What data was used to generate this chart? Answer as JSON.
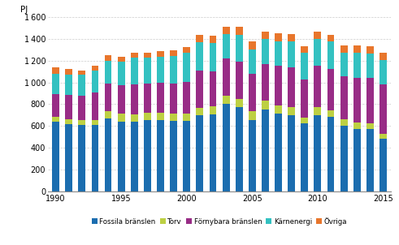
{
  "years": [
    1990,
    1991,
    1992,
    1993,
    1994,
    1995,
    1996,
    1997,
    1998,
    1999,
    2000,
    2001,
    2002,
    2003,
    2004,
    2005,
    2006,
    2007,
    2008,
    2009,
    2010,
    2011,
    2012,
    2013,
    2014,
    2015
  ],
  "fossila": [
    635,
    615,
    605,
    605,
    670,
    640,
    640,
    650,
    650,
    645,
    645,
    695,
    705,
    800,
    770,
    650,
    750,
    710,
    700,
    620,
    700,
    680,
    600,
    575,
    570,
    480
  ],
  "torv": [
    45,
    45,
    45,
    50,
    65,
    70,
    65,
    70,
    70,
    65,
    65,
    70,
    75,
    80,
    80,
    85,
    80,
    75,
    70,
    55,
    70,
    65,
    60,
    55,
    55,
    50
  ],
  "fornybara": [
    215,
    225,
    230,
    250,
    255,
    265,
    275,
    270,
    275,
    280,
    295,
    340,
    320,
    340,
    340,
    340,
    340,
    365,
    370,
    355,
    380,
    380,
    395,
    415,
    420,
    450
  ],
  "karnenergi": [
    185,
    185,
    190,
    200,
    210,
    215,
    245,
    235,
    240,
    255,
    265,
    265,
    265,
    225,
    245,
    230,
    230,
    225,
    235,
    240,
    250,
    255,
    220,
    230,
    220,
    225
  ],
  "ovriga": [
    55,
    50,
    35,
    45,
    50,
    45,
    50,
    45,
    50,
    50,
    55,
    65,
    65,
    70,
    75,
    75,
    70,
    75,
    70,
    60,
    65,
    60,
    65,
    65,
    65,
    65
  ],
  "colors": {
    "fossila": "#1b6daf",
    "torv": "#bdd043",
    "fornybara": "#982c86",
    "karnenergi": "#33c1c1",
    "ovriga": "#e8762c"
  },
  "ylim": [
    0,
    1600
  ],
  "yticks": [
    0,
    200,
    400,
    600,
    800,
    1000,
    1200,
    1400,
    1600
  ],
  "xticks": [
    1990,
    1995,
    2000,
    2005,
    2010,
    2015
  ],
  "ylabel": "PJ",
  "bar_width": 0.55,
  "legend_labels": [
    "Fossila bränslen",
    "Torv",
    "Förnybara bränslen",
    "Kärnenergi",
    "Övriga"
  ]
}
